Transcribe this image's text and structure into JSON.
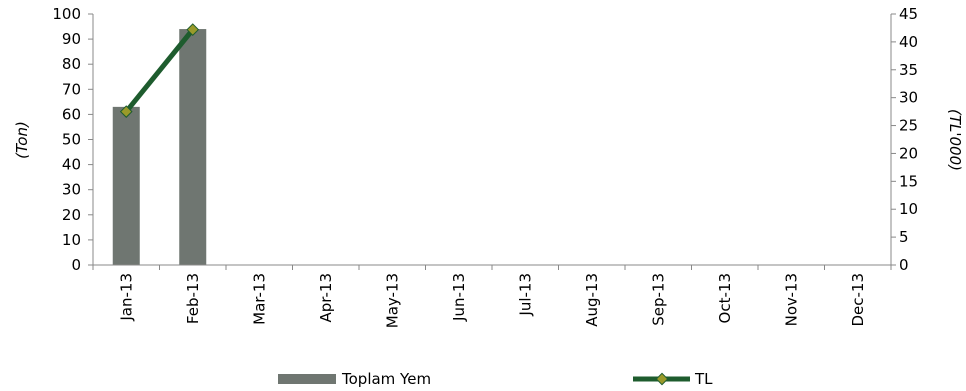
{
  "chart_data": {
    "type": "bar",
    "categories": [
      "Jan-13",
      "Feb-13",
      "Mar-13",
      "Apr-13",
      "May-13",
      "Jun-13",
      "Jul-13",
      "Aug-13",
      "Sep-13",
      "Oct-13",
      "Nov-13",
      "Dec-13"
    ],
    "series": [
      {
        "name": "Toplam Yem",
        "type": "bar",
        "axis": "left",
        "color": "#6f7671",
        "values": [
          63,
          94,
          null,
          null,
          null,
          null,
          null,
          null,
          null,
          null,
          null,
          null
        ]
      },
      {
        "name": "TL",
        "type": "line",
        "axis": "right",
        "color": "#1e5c2e",
        "marker_color": "#9a9a2a",
        "values": [
          27.5,
          42.2,
          null,
          null,
          null,
          null,
          null,
          null,
          null,
          null,
          null,
          null
        ]
      }
    ],
    "ylabel": "(Ton)",
    "y2label": "(TL'000)",
    "ylim": [
      0,
      100
    ],
    "y2lim": [
      0,
      45
    ],
    "yticks": [
      0,
      10,
      20,
      30,
      40,
      50,
      60,
      70,
      80,
      90,
      100
    ],
    "y2ticks": [
      0,
      5,
      10,
      15,
      20,
      25,
      30,
      35,
      40,
      45
    ],
    "grid": false,
    "legend": "bottom"
  }
}
